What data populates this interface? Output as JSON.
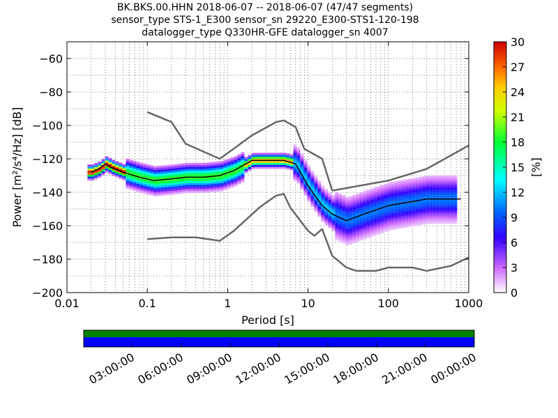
{
  "header": {
    "line1": "BK.BKS.00.HHN   2018-06-07 -- 2018-06-07  (47/47 segments)",
    "line2": "sensor_type STS-1_E300 sensor_sn 29220_E300-STS1-120-198",
    "line3": "datalogger_type Q330HR-GFE datalogger_sn 4007"
  },
  "chart_data": [
    {
      "type": "heatmap",
      "title": "BK.BKS.00.HHN   2018-06-07 -- 2018-06-07  (47/47 segments)",
      "xlabel": "Period [s]",
      "ylabel": "Power [m²/s⁴/Hz] [dB]",
      "x_scale": "log",
      "xlim": [
        0.01,
        1000
      ],
      "ylim": [
        -200,
        -50
      ],
      "x_ticks": [
        "0.01",
        "0.1",
        "1",
        "10",
        "100",
        "1000"
      ],
      "y_ticks": [
        "−60",
        "−80",
        "−100",
        "−120",
        "−140",
        "−160",
        "−180",
        "−200"
      ],
      "colorbar": {
        "label": "[%]",
        "range": [
          0,
          30
        ],
        "ticks": [
          "0",
          "3",
          "6",
          "9",
          "12",
          "15",
          "18",
          "21",
          "24",
          "27",
          "30"
        ]
      },
      "grid": true,
      "series": [
        {
          "name": "",
          "color": "#666666",
          "x": [
            0.1,
            0.2,
            0.3,
            0.8,
            2.0,
            4.0,
            5.0,
            7.0,
            9.0,
            15.0,
            20.0
          ],
          "y": [
            -92,
            -98,
            -111,
            -120,
            -106,
            -98,
            -97,
            -101,
            -114,
            -120,
            -139
          ]
        },
        {
          "name": "",
          "color": "#666666",
          "x": [
            20,
            100,
            300,
            1000
          ],
          "y": [
            -139,
            -133,
            -126,
            -112
          ]
        },
        {
          "name": "",
          "color": "#666666",
          "x": [
            0.1,
            0.2,
            0.4,
            0.8,
            1.2,
            2.5,
            4.0,
            5.0,
            6.0,
            10.0,
            12.0,
            15.0,
            20.0,
            30.0,
            40.0,
            70.0,
            100.0,
            200.0,
            300.0,
            600.0,
            1000.0
          ],
          "y": [
            -168,
            -167,
            -167,
            -169,
            -163,
            -149,
            -142,
            -141,
            -149,
            -163,
            -166,
            -162,
            -178,
            -185,
            -187,
            -187,
            -185,
            -185,
            -187,
            -184,
            -179
          ]
        },
        {
          "name": "",
          "color": "#000000",
          "x": [
            0.02,
            0.025,
            0.03,
            0.035,
            0.05,
            0.08,
            0.12,
            0.2,
            0.3,
            0.5,
            0.8,
            1.2,
            2.0,
            3.0,
            5.0,
            7.0,
            10.0,
            15.0,
            20.0,
            30.0,
            50.0,
            100.0,
            300.0,
            800.0
          ],
          "y": [
            -128,
            -126,
            -123,
            -125,
            -128,
            -131,
            -133,
            -132,
            -131,
            -131,
            -130,
            -127,
            -121,
            -121,
            -121,
            -123,
            -136,
            -148,
            -153,
            -157,
            -153,
            -148,
            -144,
            -144
          ]
        }
      ]
    },
    {
      "type": "timeline",
      "x_ticks": [
        "03:00:00",
        "06:00:00",
        "09:00:00",
        "12:00:00",
        "15:00:00",
        "18:00:00",
        "21:00:00",
        "00:00:00"
      ],
      "bars": [
        {
          "color": "#008000",
          "coverage": 1.0
        },
        {
          "color": "#0000ff",
          "coverage": 1.0
        }
      ]
    }
  ]
}
